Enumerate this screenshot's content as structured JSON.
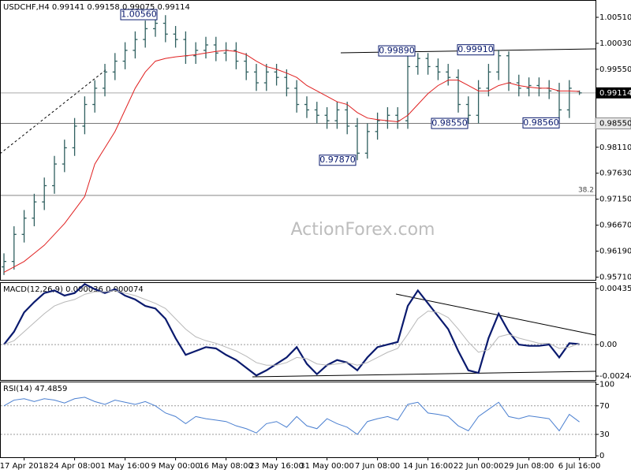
{
  "chart_data": [
    {
      "type": "ohlc",
      "title": "USDCHF,H4",
      "bar_color": "#2f5f5f",
      "categories": [
        null,
        null,
        "17 Apr 2018",
        null,
        null,
        null,
        null,
        "24 Apr 08:00",
        null,
        null,
        null,
        null,
        "1 May 16:00",
        null,
        null,
        null,
        null,
        "9 May 00:00",
        null,
        null,
        null,
        null,
        "16 May 08:00",
        null,
        null,
        null,
        null,
        "23 May 16:00",
        null,
        null,
        null,
        null,
        "31 May 00:00",
        null,
        null,
        null,
        null,
        "7 Jun 08:00",
        null,
        null,
        null,
        null,
        "14 Jun 16:00",
        null,
        null,
        null,
        null,
        "22 Jun 00:00",
        null,
        null,
        null,
        null,
        "29 Jun 08:00",
        null,
        null,
        null,
        null,
        "6 Jul 16:00"
      ],
      "open": [
        0.959,
        0.96,
        0.965,
        0.968,
        0.971,
        0.974,
        0.978,
        0.981,
        0.985,
        0.989,
        0.992,
        0.995,
        0.997,
        0.999,
        1.001,
        1.003,
        1.004,
        1.002,
        1.001,
        0.998,
        0.999,
        1.0,
        0.9985,
        0.999,
        0.997,
        0.995,
        0.993,
        0.995,
        0.994,
        0.992,
        0.989,
        0.988,
        0.987,
        0.986,
        0.988,
        0.985,
        0.98,
        0.984,
        0.986,
        0.987,
        0.986,
        0.996,
        0.9975,
        0.996,
        0.995,
        0.994,
        0.989,
        0.987,
        0.992,
        0.995,
        0.998,
        0.993,
        0.992,
        0.9925,
        0.992,
        0.9915,
        0.988,
        0.99141
      ],
      "high": [
        0.9615,
        0.9665,
        0.9695,
        0.9725,
        0.9755,
        0.9795,
        0.9825,
        0.9865,
        0.9905,
        0.9935,
        0.9965,
        0.9985,
        1.0005,
        1.0025,
        1.0045,
        1.0056,
        1.0055,
        1.0035,
        1.0025,
        1.0005,
        1.0015,
        1.0015,
        1.0005,
        1.0005,
        0.9985,
        0.9965,
        0.9965,
        0.9965,
        0.9955,
        0.9935,
        0.9905,
        0.9895,
        0.9885,
        0.9895,
        0.9895,
        0.9865,
        0.9855,
        0.9875,
        0.9885,
        0.9885,
        0.9989,
        0.9985,
        0.9985,
        0.9975,
        0.9965,
        0.9955,
        0.9905,
        0.9935,
        0.9965,
        0.9991,
        0.9988,
        0.9945,
        0.994,
        0.994,
        0.9935,
        0.993,
        0.9935,
        0.99158
      ],
      "low": [
        0.9575,
        0.9585,
        0.9635,
        0.9665,
        0.9695,
        0.9725,
        0.9765,
        0.9795,
        0.9835,
        0.9875,
        0.9905,
        0.9935,
        0.9955,
        0.9975,
        0.9995,
        1.0015,
        1.0005,
        0.9995,
        0.9965,
        0.9965,
        0.9975,
        0.997,
        0.997,
        0.9955,
        0.9935,
        0.9915,
        0.9915,
        0.9925,
        0.9905,
        0.9875,
        0.9865,
        0.9855,
        0.9845,
        0.9845,
        0.9835,
        0.9787,
        0.979,
        0.9825,
        0.9845,
        0.9845,
        0.9845,
        0.9945,
        0.9945,
        0.9935,
        0.9925,
        0.9875,
        0.9855,
        0.9855,
        0.9905,
        0.9935,
        0.9915,
        0.9905,
        0.9905,
        0.9905,
        0.99,
        0.9856,
        0.9865,
        0.99075
      ],
      "close": [
        0.96,
        0.965,
        0.968,
        0.971,
        0.974,
        0.978,
        0.981,
        0.985,
        0.989,
        0.992,
        0.995,
        0.997,
        0.999,
        1.001,
        1.003,
        1.004,
        1.002,
        1.001,
        0.998,
        0.999,
        1.0,
        0.9985,
        0.999,
        0.997,
        0.995,
        0.993,
        0.995,
        0.994,
        0.992,
        0.989,
        0.988,
        0.987,
        0.986,
        0.988,
        0.985,
        0.98,
        0.984,
        0.986,
        0.987,
        0.986,
        0.996,
        0.9975,
        0.996,
        0.995,
        0.994,
        0.989,
        0.987,
        0.992,
        0.995,
        0.998,
        0.993,
        0.992,
        0.9925,
        0.992,
        0.9915,
        0.988,
        0.992,
        0.99114
      ],
      "ma": {
        "color": "#e02020",
        "values": [
          0.958,
          0.959,
          0.96,
          0.9615,
          0.963,
          0.965,
          0.967,
          0.9695,
          0.972,
          0.978,
          0.981,
          0.984,
          0.988,
          0.992,
          0.995,
          0.997,
          0.9975,
          0.9978,
          0.998,
          0.9982,
          0.9985,
          0.9988,
          0.999,
          0.9988,
          0.9982,
          0.997,
          0.996,
          0.9955,
          0.9948,
          0.994,
          0.9925,
          0.9915,
          0.9905,
          0.9895,
          0.989,
          0.9875,
          0.9865,
          0.9862,
          0.986,
          0.9858,
          0.987,
          0.989,
          0.991,
          0.9925,
          0.9935,
          0.9935,
          0.9925,
          0.9915,
          0.9915,
          0.9925,
          0.993,
          0.9925,
          0.9922,
          0.992,
          0.992,
          0.9915,
          0.9915,
          0.9914
        ]
      },
      "ylim": [
        0.9566,
        1.0083
      ],
      "yticks": [
        {
          "value": 1.0051,
          "label": "1.00510"
        },
        {
          "value": 1.0003,
          "label": "1.00030"
        },
        {
          "value": 0.9955,
          "label": "0.99550"
        },
        {
          "value": 0.9811,
          "label": "0.98110"
        },
        {
          "value": 0.9763,
          "label": "0.97630"
        },
        {
          "value": 0.9715,
          "label": "0.97150"
        },
        {
          "value": 0.9667,
          "label": "0.96670"
        },
        {
          "value": 0.9619,
          "label": "0.96190"
        },
        {
          "value": 0.9571,
          "label": "0.95710"
        }
      ],
      "annotations": [
        {
          "value": 1.0056,
          "label": "1.00560"
        },
        {
          "value": 0.9989,
          "label": "0.99890"
        },
        {
          "value": 0.9991,
          "label": "0.99910"
        },
        {
          "value": 0.9855,
          "label": "0.98550"
        },
        {
          "value": 0.9856,
          "label": "0.98560"
        },
        {
          "value": 0.9787,
          "label": "0.97870"
        }
      ],
      "support": {
        "value": 0.9855,
        "label": "0.98550"
      },
      "fib": {
        "value": 0.9722,
        "label": "38.2"
      },
      "watermark": "ActionForex.com"
    },
    {
      "type": "line",
      "title": "MACD(12,26,9)",
      "series": [
        {
          "color": "#0a1a6e",
          "values": [
            0.0,
            0.001,
            0.0025,
            0.0033,
            0.004,
            0.0042,
            0.0038,
            0.004,
            0.0047,
            0.0043,
            0.004,
            0.0043,
            0.0038,
            0.0035,
            0.003,
            0.0028,
            0.002,
            0.0005,
            -0.0008,
            -0.0005,
            -0.0002,
            -0.0003,
            -0.0008,
            -0.0012,
            -0.0018,
            -0.0024,
            -0.002,
            -0.0015,
            -0.001,
            -0.0002,
            -0.0015,
            -0.0023,
            -0.0016,
            -0.0012,
            -0.0014,
            -0.002,
            -0.001,
            -0.0002,
            0.0,
            0.0002,
            0.003,
            0.0042,
            0.0032,
            0.0022,
            0.0012,
            -0.0005,
            -0.002,
            -0.0022,
            0.0005,
            0.0024,
            0.001,
            0.0,
            -0.0001,
            -0.0001,
            0.0,
            -0.001,
            0.0001,
            3.6e-05
          ]
        },
        {
          "color": "#b8b8b8",
          "values": [
            0.0,
            0.0003,
            0.001,
            0.0017,
            0.0024,
            0.003,
            0.0033,
            0.0035,
            0.0039,
            0.0041,
            0.0041,
            0.0042,
            0.004,
            0.0038,
            0.0035,
            0.0032,
            0.0028,
            0.002,
            0.0012,
            0.0006,
            0.0003,
            0.0001,
            -0.0002,
            -0.0005,
            -0.0009,
            -0.0014,
            -0.0016,
            -0.0016,
            -0.0014,
            -0.001,
            -0.0011,
            -0.0015,
            -0.0016,
            -0.0015,
            -0.0014,
            -0.0016,
            -0.0014,
            -0.001,
            -0.0006,
            -0.0003,
            0.0008,
            0.002,
            0.0026,
            0.0025,
            0.0021,
            0.0012,
            0.0002,
            -0.0006,
            -0.0004,
            0.0006,
            0.0008,
            0.0005,
            0.0003,
            0.0001,
            0.0001,
            -0.0003,
            -0.0002,
            7.4e-05
          ]
        }
      ],
      "ylim": [
        -0.00275,
        0.00484
      ],
      "yticks": [
        0.004351,
        {
          "value": 0,
          "label": "0.00"
        },
        -0.002448
      ],
      "levels": [
        0
      ]
    },
    {
      "type": "line",
      "title": "RSI(14)",
      "series": [
        {
          "color": "#4a7fd0",
          "values": [
            70,
            78,
            80,
            76,
            80,
            78,
            74,
            80,
            82,
            76,
            72,
            78,
            75,
            72,
            76,
            70,
            60,
            55,
            45,
            55,
            52,
            50,
            48,
            42,
            38,
            32,
            45,
            48,
            40,
            55,
            42,
            38,
            52,
            45,
            40,
            30,
            48,
            52,
            55,
            50,
            72,
            75,
            60,
            58,
            55,
            42,
            35,
            55,
            65,
            75,
            55,
            52,
            56,
            54,
            52,
            35,
            58,
            47.4859
          ]
        }
      ],
      "ylim": [
        -2,
        104
      ],
      "yticks": [
        100,
        70,
        30,
        0
      ],
      "levels": [
        70,
        30
      ]
    }
  ]
}
